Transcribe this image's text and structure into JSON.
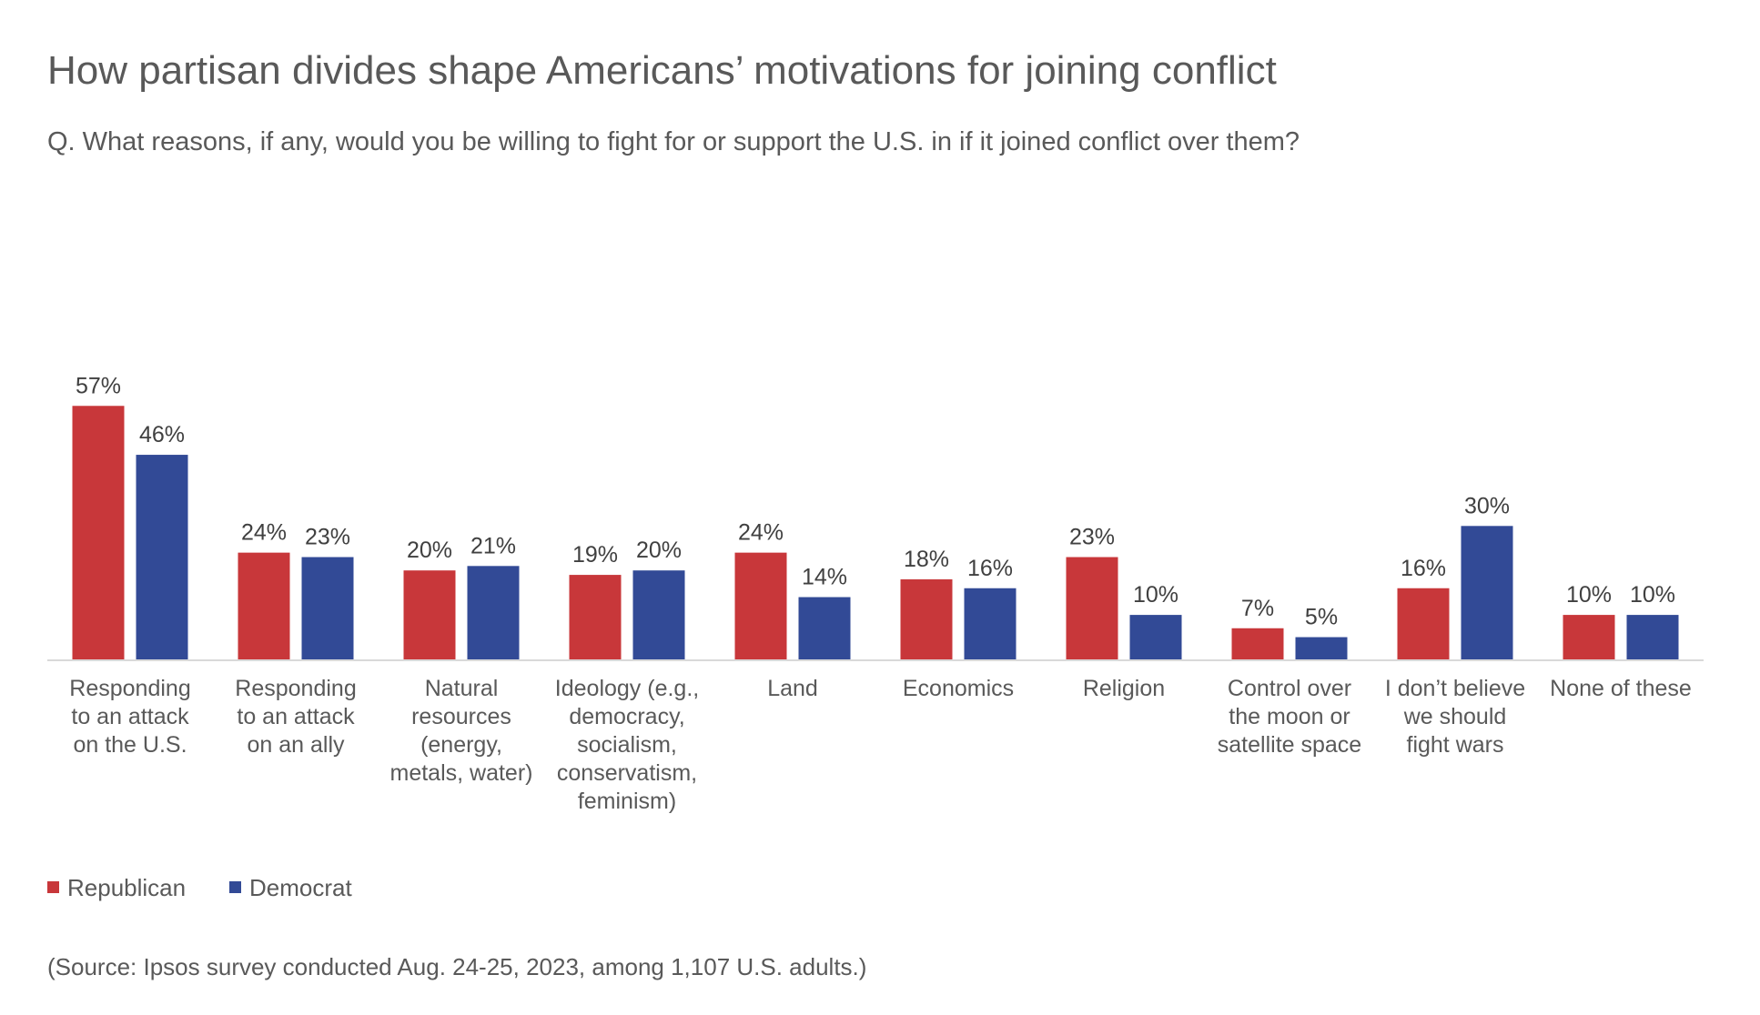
{
  "chart_data": {
    "type": "bar",
    "title": "How partisan divides shape Americans’ motivations for joining conflict",
    "subtitle": "Q. What reasons, if any, would you be willing to fight for or support the U.S. in if it joined conflict over them?",
    "categories": [
      [
        "Responding",
        "to an attack",
        "on the U.S."
      ],
      [
        "Responding",
        "to an attack",
        "on an ally"
      ],
      [
        "Natural",
        "resources",
        "(energy,",
        "metals, water)"
      ],
      [
        "Ideology (e.g.,",
        "democracy,",
        "socialism,",
        "conservatism,",
        "feminism)"
      ],
      [
        "Land"
      ],
      [
        "Economics"
      ],
      [
        "Religion"
      ],
      [
        "Control over",
        "the moon or",
        "satellite space"
      ],
      [
        "I don’t believe",
        "we should",
        "fight wars"
      ],
      [
        "None of these"
      ]
    ],
    "series": [
      {
        "name": "Republican",
        "color": "#C8373A",
        "values": [
          57,
          24,
          20,
          19,
          24,
          18,
          23,
          7,
          16,
          10
        ]
      },
      {
        "name": "Democrat",
        "color": "#324A96",
        "values": [
          46,
          23,
          21,
          20,
          14,
          16,
          10,
          5,
          30,
          10
        ]
      }
    ],
    "value_suffix": "%",
    "ylim": [
      0,
      60
    ],
    "grid": false,
    "legend_placement": "bottom-left",
    "source": "(Source: Ipsos survey conducted Aug. 24-25, 2023, among 1,107 U.S. adults.)"
  }
}
